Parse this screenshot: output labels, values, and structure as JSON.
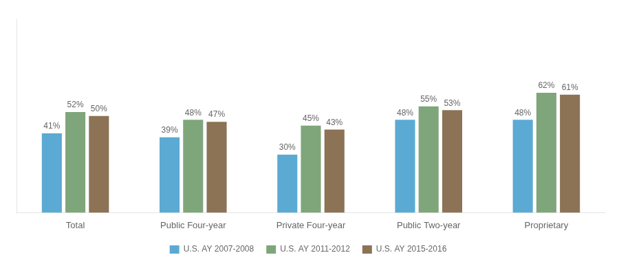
{
  "chart_data": {
    "type": "bar",
    "categories": [
      "Total",
      "Public Four-year",
      "Private Four-year",
      "Public Two-year",
      "Proprietary"
    ],
    "series": [
      {
        "name": "U.S. AY 2007-2008",
        "color": "#5BAAD4",
        "values": [
          41,
          39,
          30,
          48,
          48
        ],
        "value_labels": [
          "41%",
          "39%",
          "30%",
          "48%",
          "48%"
        ]
      },
      {
        "name": "U.S. AY 2011-2012",
        "color": "#7FA67A",
        "values": [
          52,
          48,
          45,
          55,
          62
        ],
        "value_labels": [
          "52%",
          "48%",
          "45%",
          "55%",
          "62%"
        ]
      },
      {
        "name": "U.S. AY 2015-2016",
        "color": "#8C7355",
        "values": [
          50,
          47,
          43,
          53,
          61
        ],
        "value_labels": [
          "50%",
          "47%",
          "43%",
          "53%",
          "61%"
        ]
      }
    ],
    "ylim": [
      0,
      100
    ],
    "grid": false,
    "legend": "bottom",
    "data_labels": true,
    "tick_labels": "x"
  }
}
